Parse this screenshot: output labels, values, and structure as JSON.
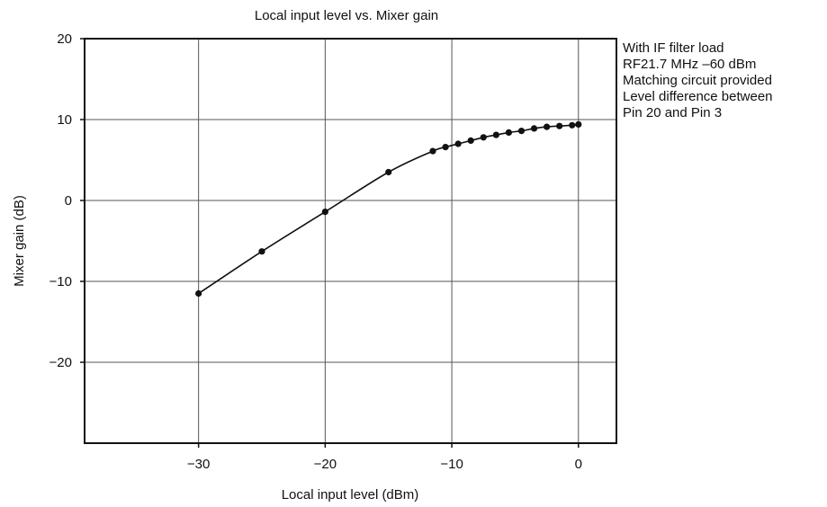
{
  "chart_data": {
    "type": "line",
    "title": "Local input level vs. Mixer gain",
    "xlabel": "Local input level (dBm)",
    "ylabel": "Mixer gain (dB)",
    "xlim": [
      -39,
      3
    ],
    "ylim": [
      -30,
      20
    ],
    "x_ticks": [
      -30,
      -20,
      -10,
      0
    ],
    "x_tick_labels": [
      "−30",
      "−20",
      "−10",
      "0"
    ],
    "y_ticks": [
      -20,
      -10,
      0,
      10,
      20
    ],
    "y_tick_labels": [
      "−20",
      "−10",
      "0",
      "10",
      "20"
    ],
    "grid": true,
    "annotation_lines": [
      "With IF filter load",
      "RF21.7 MHz –60 dBm",
      "Matching circuit provided",
      "Level difference between",
      "Pin 20 and Pin 3"
    ],
    "series": [
      {
        "color": "#111111",
        "points": [
          {
            "x": -30,
            "y": -11.5
          },
          {
            "x": -25,
            "y": -6.3
          },
          {
            "x": -20,
            "y": -1.4
          },
          {
            "x": -15,
            "y": 3.5
          },
          {
            "x": -11.5,
            "y": 6.1
          },
          {
            "x": -10.5,
            "y": 6.6
          },
          {
            "x": -9.5,
            "y": 7.0
          },
          {
            "x": -8.5,
            "y": 7.4
          },
          {
            "x": -7.5,
            "y": 7.8
          },
          {
            "x": -6.5,
            "y": 8.1
          },
          {
            "x": -5.5,
            "y": 8.4
          },
          {
            "x": -4.5,
            "y": 8.6
          },
          {
            "x": -3.5,
            "y": 8.9
          },
          {
            "x": -2.5,
            "y": 9.1
          },
          {
            "x": -1.5,
            "y": 9.2
          },
          {
            "x": -0.5,
            "y": 9.3
          },
          {
            "x": 0,
            "y": 9.4
          }
        ]
      }
    ]
  }
}
